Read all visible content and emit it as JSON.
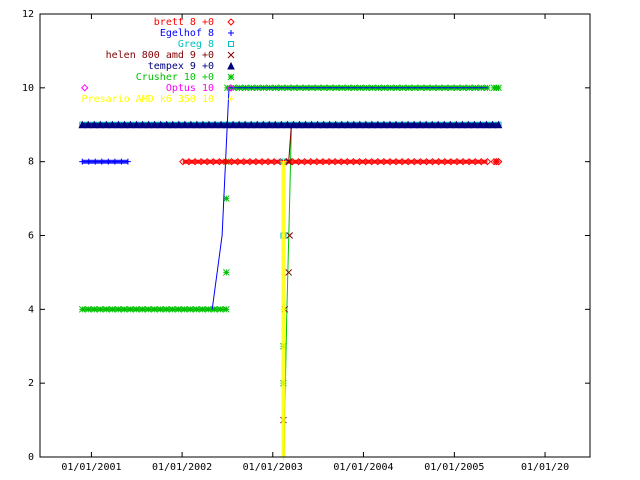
{
  "chart_data": {
    "type": "line",
    "title": "",
    "xlabel": "",
    "ylabel": "",
    "x_axis_kind": "date",
    "xlim": [
      "2000-06-08",
      "2006-07-01"
    ],
    "ylim": [
      0,
      12
    ],
    "y_ticks": [
      0,
      2,
      4,
      6,
      8,
      10,
      12
    ],
    "x_ticks": [
      {
        "date": "2001-01-01",
        "label": "01/01/2001"
      },
      {
        "date": "2002-01-01",
        "label": "01/01/2002"
      },
      {
        "date": "2003-01-01",
        "label": "01/01/2003"
      },
      {
        "date": "2004-01-01",
        "label": "01/01/2004"
      },
      {
        "date": "2005-01-01",
        "label": "01/01/2005"
      },
      {
        "date": "2006-01-01",
        "label": "01/01/20"
      }
    ],
    "grid": false,
    "legend_position": "top-left",
    "series": [
      {
        "name": "brett 8 +0",
        "color": "#ff0000",
        "marker": "diamond",
        "segments": [
          [
            [
              "2002-01-04",
              8
            ],
            [
              "2005-05-14",
              8
            ]
          ],
          [
            [
              "2005-06-10",
              8
            ],
            [
              "2005-06-28",
              8
            ]
          ]
        ],
        "points": [
          [
            "2005-06-28",
            8
          ]
        ]
      },
      {
        "name": "Egelhof 8",
        "color": "#0000ff",
        "marker": "plus",
        "segments": [
          [
            [
              "2000-11-25",
              8
            ],
            [
              "2001-05-28",
              8
            ]
          ],
          [
            [
              "2002-05-02",
              4
            ],
            [
              "2002-06-11",
              6
            ],
            [
              "2002-07-09",
              10
            ],
            [
              "2005-05-14",
              10
            ]
          ]
        ],
        "points": []
      },
      {
        "name": "Greg 8",
        "color": "#00c0c0",
        "marker": "square",
        "segments": [
          [
            [
              "2000-11-25",
              9
            ],
            [
              "2005-06-28",
              9
            ]
          ]
        ],
        "points": [
          [
            "2003-02-13",
            6
          ],
          [
            "2003-02-13",
            8
          ]
        ]
      },
      {
        "name": "helen 800 amd 9 +0",
        "color": "#800000",
        "marker": "cross",
        "segments": [
          [
            [
              "2003-03-06",
              8
            ],
            [
              "2003-03-17",
              9
            ],
            [
              "2005-06-28",
              9
            ]
          ]
        ],
        "points": [
          [
            "2003-02-13",
            1
          ],
          [
            "2003-02-18",
            4
          ],
          [
            "2003-03-06",
            5
          ],
          [
            "2003-03-10",
            6
          ],
          [
            "2003-03-06",
            8
          ]
        ]
      },
      {
        "name": "tempex 9 +0",
        "color": "#000080",
        "marker": "triangle",
        "segments": [
          [
            [
              "2000-11-25",
              9
            ],
            [
              "2005-06-28",
              9
            ]
          ]
        ],
        "points": []
      },
      {
        "name": "Crusher 10 +0",
        "color": "#00c000",
        "marker": "star",
        "segments": [
          [
            [
              "2000-11-25",
              4
            ],
            [
              "2002-06-28",
              4
            ]
          ],
          [
            [
              "2002-07-02",
              10
            ],
            [
              "2005-05-14",
              10
            ]
          ],
          [
            [
              "2005-06-10",
              10
            ],
            [
              "2005-06-28",
              10
            ]
          ],
          [
            [
              "2003-02-15",
              0
            ],
            [
              "2003-02-27",
              4
            ],
            [
              "2003-03-10",
              7
            ],
            [
              "2003-03-17",
              9
            ]
          ]
        ],
        "points": [
          [
            "2002-06-28",
            5
          ],
          [
            "2002-06-28",
            7
          ],
          [
            "2002-06-28",
            8
          ],
          [
            "2002-06-28",
            9
          ],
          [
            "2003-02-13",
            2
          ],
          [
            "2003-02-13",
            3
          ]
        ]
      },
      {
        "name": "Optus 10",
        "color": "#ff00ff",
        "marker": "diamond-open",
        "segments": [],
        "points": [
          [
            "2000-12-05",
            10
          ]
        ]
      },
      {
        "name": "Presario AMD k6 350 10",
        "color": "#ffff00",
        "marker": "plus",
        "segments": [
          [
            [
              "2003-02-13",
              0
            ],
            [
              "2003-02-13",
              8
            ]
          ]
        ],
        "points": []
      }
    ]
  }
}
